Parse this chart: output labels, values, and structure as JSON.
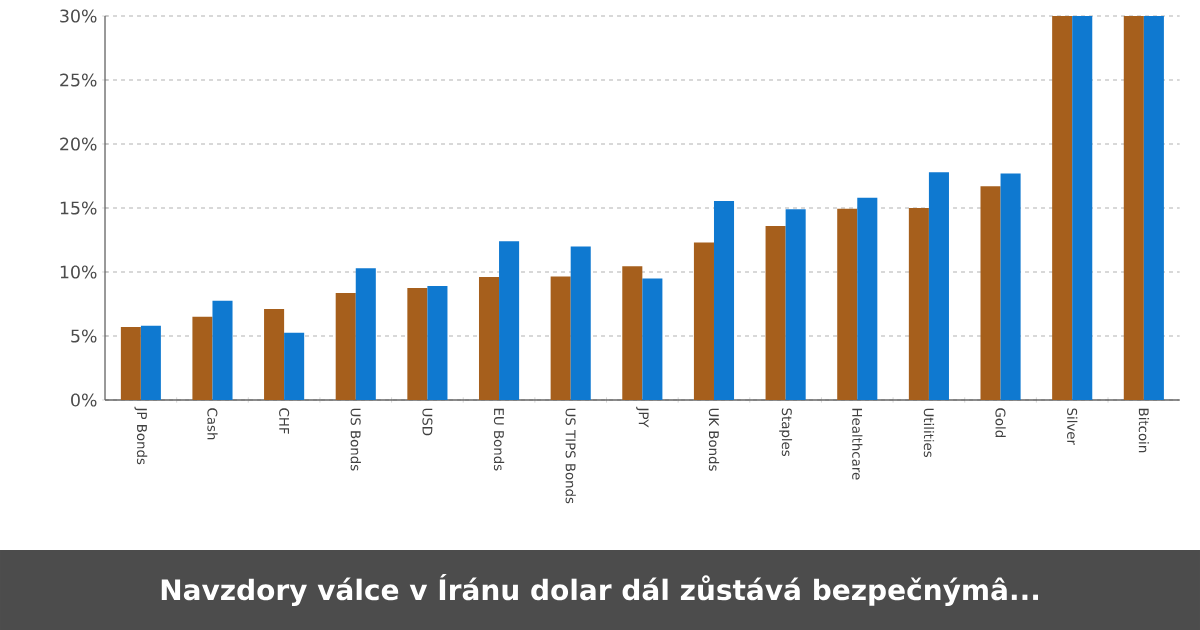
{
  "chart_data": {
    "type": "bar",
    "title": "Navzdory válce v Íránu dolar dál zůstává bezpečnýmâ...",
    "categories": [
      "JP Bonds",
      "Cash",
      "CHF",
      "US Bonds",
      "USD",
      "EU Bonds",
      "US TIPS Bonds",
      "JPY",
      "UK Bonds",
      "Staples",
      "Healthcare",
      "Utilities",
      "Gold",
      "Silver",
      "Bitcoin"
    ],
    "series": [
      {
        "color": "#a65f1c",
        "values": [
          5.7,
          6.5,
          7.1,
          8.35,
          8.75,
          9.6,
          9.65,
          10.45,
          12.3,
          13.6,
          14.95,
          15.0,
          16.7,
          30,
          30
        ]
      },
      {
        "color": "#0f79d0",
        "values": [
          5.8,
          7.75,
          5.25,
          10.3,
          8.9,
          12.4,
          12.0,
          9.5,
          15.55,
          14.9,
          15.8,
          17.8,
          17.7,
          30,
          30
        ]
      }
    ],
    "ylim": [
      0,
      30
    ],
    "yticks": [
      {
        "value": 0,
        "label": "0%"
      },
      {
        "value": 5,
        "label": "5%"
      },
      {
        "value": 10,
        "label": "10%"
      },
      {
        "value": 15,
        "label": "15%"
      },
      {
        "value": 20,
        "label": "20%"
      },
      {
        "value": 25,
        "label": "25%"
      },
      {
        "value": 30,
        "label": "30%"
      }
    ],
    "grid": "y"
  }
}
